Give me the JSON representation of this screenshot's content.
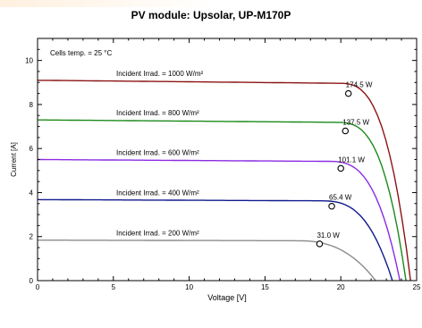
{
  "chart_data": {
    "type": "line",
    "title": "PV module:  Upsolar,  UP-M170P",
    "xlabel": "Voltage [V]",
    "ylabel": "Current [A]",
    "xlim": [
      0,
      25
    ],
    "ylim": [
      0,
      11
    ],
    "x_ticks": [
      "0",
      "5",
      "10",
      "15",
      "20",
      "25"
    ],
    "y_ticks": [
      "0",
      "2",
      "4",
      "6",
      "8",
      "10"
    ],
    "note": "Cells temp. = 25 °C",
    "series": [
      {
        "name": "Incident Irrad. = 1000 W/m²",
        "color": "#8b1414",
        "isc": 9.1,
        "voc": 24.6,
        "knee": 19.8,
        "shape": 3.0,
        "mpp": [
          20.5,
          8.5
        ],
        "mpp_label": "174.5 W"
      },
      {
        "name": "Incident Irrad. = 800 W/m²",
        "color": "#1b8a1b",
        "isc": 7.3,
        "voc": 24.3,
        "knee": 19.6,
        "shape": 3.1,
        "mpp": [
          20.3,
          6.8
        ],
        "mpp_label": "137.5 W"
      },
      {
        "name": "Incident Irrad. = 600 W/m²",
        "color": "#8a2be2",
        "isc": 5.5,
        "voc": 23.9,
        "knee": 19.1,
        "shape": 3.0,
        "mpp": [
          20.0,
          5.1
        ],
        "mpp_label": "101.1 W"
      },
      {
        "name": "Incident Irrad. = 400 W/m²",
        "color": "#101a8c",
        "isc": 3.68,
        "voc": 23.4,
        "knee": 18.6,
        "shape": 2.9,
        "mpp": [
          19.4,
          3.38
        ],
        "mpp_label": "65.4 W"
      },
      {
        "name": "Incident Irrad. = 200 W/m²",
        "color": "#8c8c8c",
        "isc": 1.84,
        "voc": 22.3,
        "knee": 17.0,
        "shape": 2.6,
        "mpp": [
          18.6,
          1.67
        ],
        "mpp_label": "31.0 W"
      }
    ]
  }
}
